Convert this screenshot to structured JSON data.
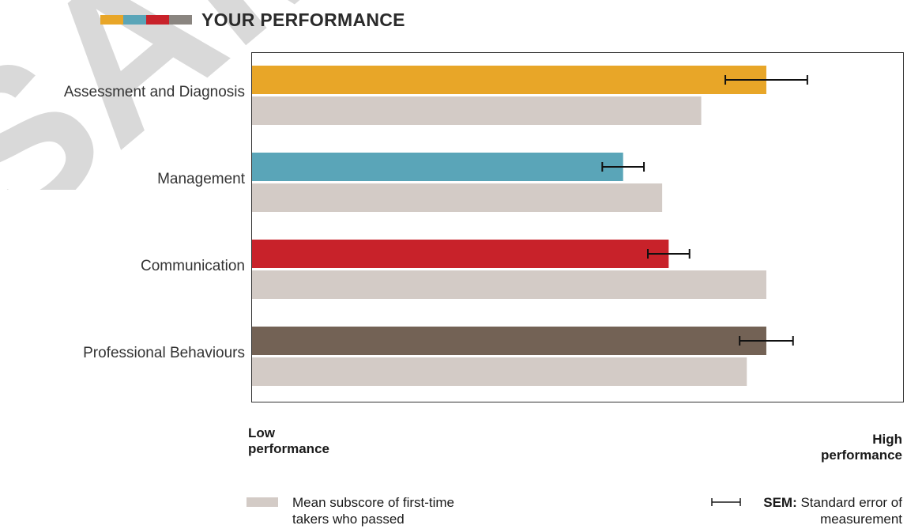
{
  "header": {
    "title": "YOUR PERFORMANCE",
    "swatches": [
      "#e8a628",
      "#5aa5b8",
      "#c8222a",
      "#8a8580"
    ]
  },
  "watermark": {
    "text": "SAMPLE",
    "color": "#d8d8d8"
  },
  "axis_labels": {
    "low": [
      "Low",
      "performance"
    ],
    "high": [
      "High",
      "performance"
    ]
  },
  "legend": {
    "mean": {
      "line1": "Mean subscore of first-time",
      "line2": "takers who passed",
      "color": "#d3cbc6"
    },
    "sem": {
      "bold": "SEM:",
      "text1": " Standard error of",
      "text2": "measurement"
    }
  },
  "chart_data": {
    "type": "bar",
    "orientation": "horizontal",
    "title": "YOUR PERFORMANCE",
    "categories": [
      "Assessment and Diagnosis",
      "Management",
      "Communication",
      "Professional Behaviours"
    ],
    "xlim": [
      0,
      100
    ],
    "series": [
      {
        "values": [
          79,
          57,
          64,
          79
        ],
        "sem": [
          6.3,
          3.2,
          3.2,
          4.1
        ],
        "colors": [
          "#e8a628",
          "#5aa5b8",
          "#c8222a",
          "#736255"
        ]
      },
      {
        "name": "Mean subscore of first-time takers who passed",
        "values": [
          69,
          63,
          79,
          76
        ],
        "color": "#d3cbc6"
      }
    ]
  }
}
